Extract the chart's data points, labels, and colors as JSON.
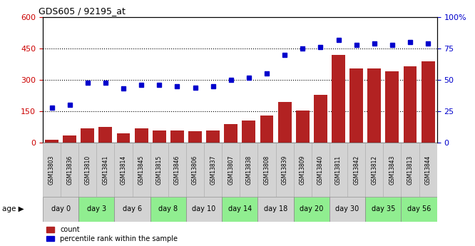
{
  "title": "GDS605 / 92195_at",
  "gsm_labels": [
    "GSM13803",
    "GSM13836",
    "GSM13810",
    "GSM13841",
    "GSM13814",
    "GSM13845",
    "GSM13815",
    "GSM13846",
    "GSM13806",
    "GSM13837",
    "GSM13807",
    "GSM13838",
    "GSM13808",
    "GSM13839",
    "GSM13809",
    "GSM13840",
    "GSM13811",
    "GSM13842",
    "GSM13812",
    "GSM13843",
    "GSM13813",
    "GSM13844"
  ],
  "day_groups": [
    {
      "label": "day 0",
      "start": 0,
      "end": 2,
      "color": "#d3d3d3"
    },
    {
      "label": "day 3",
      "start": 2,
      "end": 4,
      "color": "#90ee90"
    },
    {
      "label": "day 6",
      "start": 4,
      "end": 6,
      "color": "#d3d3d3"
    },
    {
      "label": "day 8",
      "start": 6,
      "end": 8,
      "color": "#90ee90"
    },
    {
      "label": "day 10",
      "start": 8,
      "end": 10,
      "color": "#d3d3d3"
    },
    {
      "label": "day 14",
      "start": 10,
      "end": 12,
      "color": "#90ee90"
    },
    {
      "label": "day 18",
      "start": 12,
      "end": 14,
      "color": "#d3d3d3"
    },
    {
      "label": "day 20",
      "start": 14,
      "end": 16,
      "color": "#90ee90"
    },
    {
      "label": "day 30",
      "start": 16,
      "end": 18,
      "color": "#d3d3d3"
    },
    {
      "label": "day 35",
      "start": 18,
      "end": 20,
      "color": "#90ee90"
    },
    {
      "label": "day 56",
      "start": 20,
      "end": 22,
      "color": "#90ee90"
    }
  ],
  "bar_values": [
    15,
    35,
    70,
    75,
    45,
    70,
    60,
    60,
    55,
    60,
    90,
    105,
    130,
    195,
    155,
    230,
    420,
    355,
    355,
    340,
    365,
    390
  ],
  "dot_values_pct": [
    28,
    30,
    48,
    48,
    43,
    46,
    46,
    45,
    44,
    45,
    50,
    52,
    55,
    70,
    75,
    76,
    82,
    78,
    79,
    78,
    80,
    79
  ],
  "bar_color": "#b22222",
  "dot_color": "#0000cc",
  "ylim_left": [
    0,
    600
  ],
  "ylim_right": [
    0,
    100
  ],
  "yticks_left": [
    0,
    150,
    300,
    450,
    600
  ],
  "yticks_right": [
    0,
    25,
    50,
    75,
    100
  ],
  "ylabel_left_color": "#cc0000",
  "ylabel_right_color": "#0000cc",
  "legend_count_label": "count",
  "legend_pct_label": "percentile rank within the sample",
  "age_label": "age",
  "background_color": "#ffffff",
  "gsm_bg_color": "#d3d3d3",
  "grid_color": "#000000"
}
